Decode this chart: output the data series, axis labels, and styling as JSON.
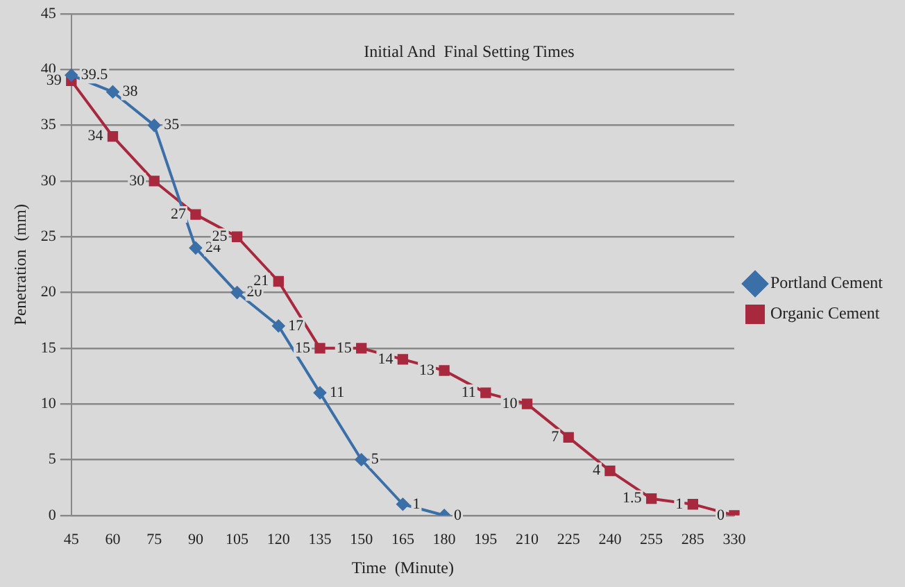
{
  "chart_data": {
    "type": "line",
    "title": "Initial And  Final Setting Times",
    "xlabel": "Time  (Minute)",
    "ylabel": "Penetration  (mm)",
    "categories": [
      "45",
      "60",
      "75",
      "90",
      "105",
      "120",
      "135",
      "150",
      "165",
      "180",
      "195",
      "210",
      "225",
      "240",
      "255",
      "285",
      "330"
    ],
    "series": [
      {
        "name": "Portland Cement",
        "color": "#3b6fa8",
        "marker": "diamond",
        "values": [
          39.5,
          38,
          35,
          24,
          20,
          17,
          11,
          5,
          1,
          0,
          null,
          null,
          null,
          null,
          null,
          null,
          null
        ]
      },
      {
        "name": "Organic Cement",
        "color": "#a8283e",
        "marker": "square",
        "values": [
          39,
          34,
          30,
          27,
          25,
          21,
          15,
          15,
          14,
          13,
          11,
          10,
          7,
          4,
          1.5,
          1,
          0
        ]
      }
    ],
    "ylim": [
      0,
      45
    ],
    "yticks": [
      0,
      5,
      10,
      15,
      20,
      25,
      30,
      35,
      40,
      45
    ],
    "grid": "y",
    "legend": "right",
    "data_labels": true
  }
}
